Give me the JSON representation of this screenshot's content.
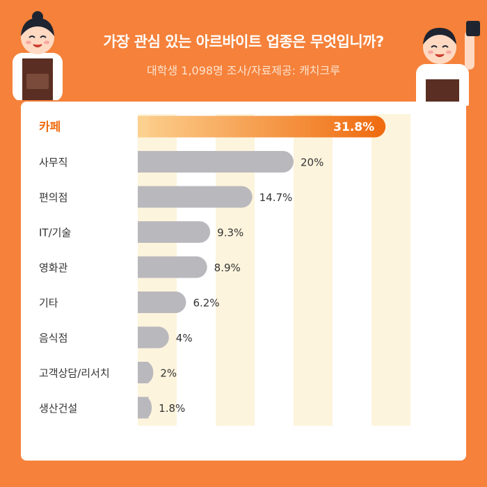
{
  "header": {
    "title": "가장 관심 있는 아르바이트 업종은 무엇입니까?",
    "subtitle": "대학생 1,098명 조사/자료제공: 캐치크루"
  },
  "colors": {
    "background": "#f5813a",
    "highlight_bar_start": "#fcd08e",
    "highlight_bar_end": "#ef6a0e",
    "highlight_label": "#ef6a0e",
    "bar_gray": "#b9b8bd",
    "grid_band": "#fdf4dd"
  },
  "chart_data": {
    "type": "bar",
    "orientation": "horizontal",
    "title": "",
    "xlabel": "",
    "ylabel": "",
    "categories": [
      "카페",
      "사무직",
      "편의점",
      "IT/기술",
      "영화관",
      "기타",
      "음식점",
      "고객상담/리서치",
      "생산건설"
    ],
    "values": [
      31.8,
      20,
      14.7,
      9.3,
      8.9,
      6.2,
      4,
      2,
      1.8
    ],
    "value_labels": [
      "31.8%",
      "20%",
      "14.7%",
      "9.3%",
      "8.9%",
      "6.2%",
      "4%",
      "2%",
      "1.8%"
    ],
    "highlight_index": 0,
    "xlim": [
      0,
      35
    ],
    "grid": true,
    "legend": "none"
  }
}
